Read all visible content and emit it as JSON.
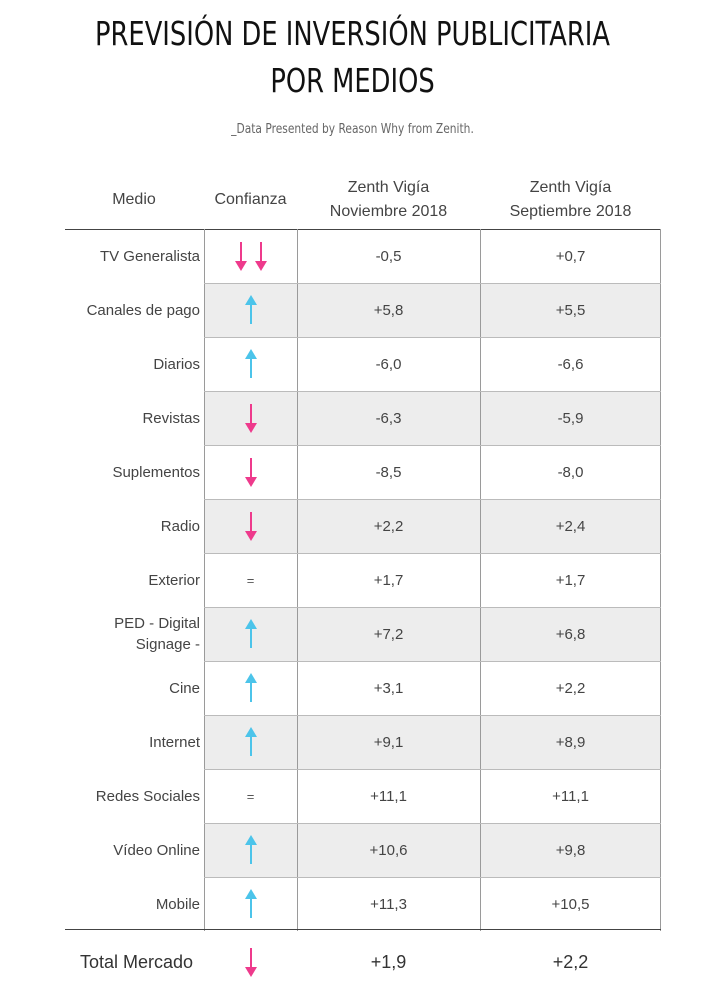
{
  "title": {
    "line1": "PREVISIÓN DE INVERSIÓN PUBLICITARIA",
    "line2": "POR MEDIOS"
  },
  "subtitle": "_Data Presented by Reason Why from Zenith.",
  "headers": {
    "medio": "Medio",
    "confianza": "Confianza",
    "nov_line1": "Zenth Vigía",
    "nov_line2": "Noviembre 2018",
    "sep_line1": "Zenth Vigía",
    "sep_line2": "Septiembre 2018"
  },
  "colors": {
    "down": "#ee3a8c",
    "up": "#4cc4ea",
    "shade": "#ededed"
  },
  "chart_data": {
    "type": "table",
    "columns": [
      "Medio",
      "Confianza",
      "Zenth Vigía Noviembre 2018",
      "Zenth Vigía Septiembre 2018"
    ],
    "rows": [
      {
        "medio": "TV Generalista",
        "confianza": "down-down",
        "nov": "-0,5",
        "sep": "+0,7"
      },
      {
        "medio": "Canales de pago",
        "confianza": "up",
        "nov": "+5,8",
        "sep": "+5,5"
      },
      {
        "medio": "Diarios",
        "confianza": "up",
        "nov": "-6,0",
        "sep": "-6,6"
      },
      {
        "medio": "Revistas",
        "confianza": "down",
        "nov": "-6,3",
        "sep": "-5,9"
      },
      {
        "medio": "Suplementos",
        "confianza": "down",
        "nov": "-8,5",
        "sep": "-8,0"
      },
      {
        "medio": "Radio",
        "confianza": "down",
        "nov": "+2,2",
        "sep": "+2,4"
      },
      {
        "medio": "Exterior",
        "confianza": "=",
        "nov": "+1,7",
        "sep": "+1,7"
      },
      {
        "medio": "PED - Digital\nSignage -",
        "confianza": "up",
        "nov": "+7,2",
        "sep": "+6,8"
      },
      {
        "medio": "Cine",
        "confianza": "up",
        "nov": "+3,1",
        "sep": "+2,2"
      },
      {
        "medio": "Internet",
        "confianza": "up",
        "nov": "+9,1",
        "sep": "+8,9"
      },
      {
        "medio": "Redes Sociales",
        "confianza": "=",
        "nov": "+11,1",
        "sep": "+11,1"
      },
      {
        "medio": "Vídeo Online",
        "confianza": "up",
        "nov": "+10,6",
        "sep": "+9,8"
      },
      {
        "medio": "Mobile",
        "confianza": "up",
        "nov": "+11,3",
        "sep": "+10,5"
      }
    ],
    "total": {
      "medio": "Total Mercado",
      "confianza": "down",
      "nov": "+1,9",
      "sep": "+2,2"
    }
  }
}
